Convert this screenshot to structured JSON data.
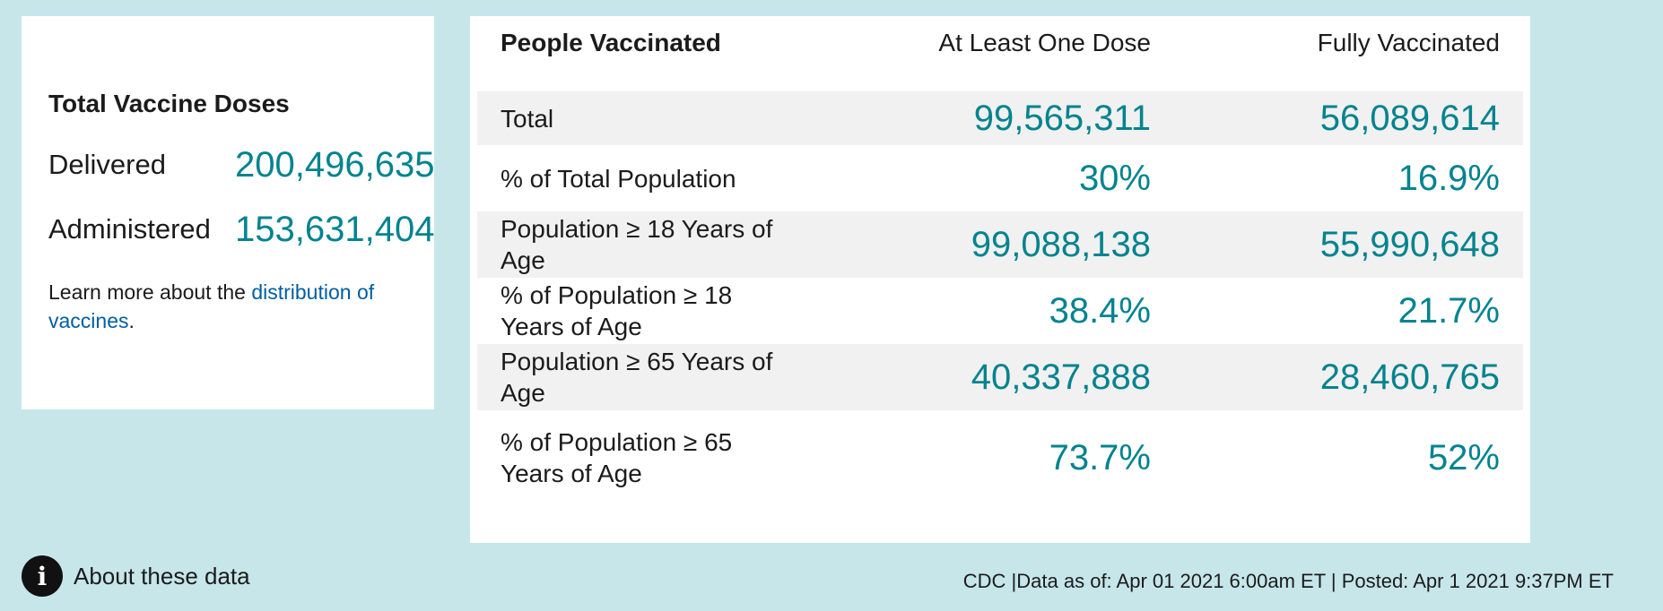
{
  "doses": {
    "title": "Total Vaccine Doses",
    "delivered_label": "Delivered",
    "delivered_value": "200,496,635",
    "administered_label": "Administered",
    "administered_value": "153,631,404",
    "learn_more_prefix": "Learn more about the ",
    "learn_more_link": "distribution of vaccines",
    "learn_more_suffix": "."
  },
  "people_table": {
    "headers": [
      "People Vaccinated",
      "At Least One Dose",
      "Fully Vaccinated"
    ],
    "rows": [
      {
        "label": "Total",
        "one_dose": "99,565,311",
        "fully": "56,089,614"
      },
      {
        "label": "% of Total Population",
        "one_dose": "30%",
        "fully": "16.9%"
      },
      {
        "label": "Population ≥ 18 Years of Age",
        "one_dose": "99,088,138",
        "fully": "55,990,648"
      },
      {
        "label": "% of Population ≥ 18 Years of Age",
        "one_dose": "38.4%",
        "fully": "21.7%"
      },
      {
        "label": "Population ≥ 65 Years of Age",
        "one_dose": "40,337,888",
        "fully": "28,460,765"
      },
      {
        "label": "% of Population ≥ 65 Years of Age",
        "one_dose": "73.7%",
        "fully": "52%"
      }
    ]
  },
  "footer": {
    "info_icon": "info-icon",
    "info_glyph": "i",
    "about_label": "About these data",
    "source_text": "CDC |Data as of: Apr 01 2021 6:00am ET | Posted: Apr 1 2021 9:37PM ET"
  },
  "colors": {
    "background": "#c6e6ea",
    "accent": "#00838f",
    "link": "#005ea2",
    "row_shade": "#f1f1f1"
  }
}
